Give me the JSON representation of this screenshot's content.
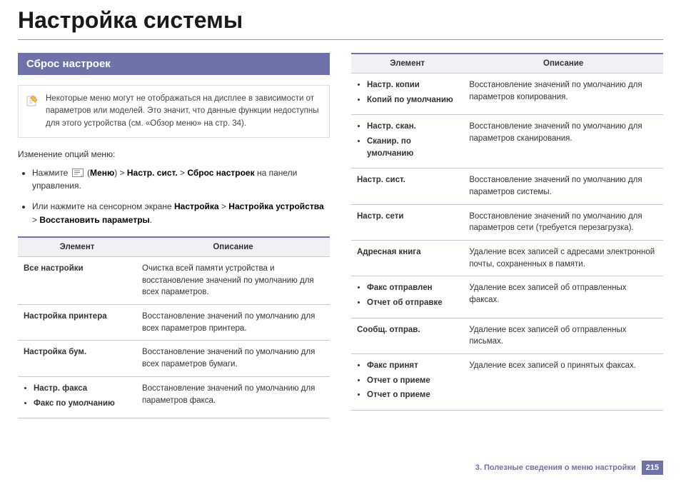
{
  "title": "Настройка системы",
  "section_header": "Сброс настроек",
  "note_text": "Некоторые меню могут не отображаться на дисплее в зависимости от параметров или моделей. Это значит, что данные функции недоступны для этого устройства (см. «Обзор меню» на стр. 34).",
  "intro": "Изменение опций меню:",
  "step1_parts": [
    "Нажмите ",
    " (",
    "Меню",
    ") > ",
    "Настр. сист.",
    " > ",
    "Сброс настроек",
    " на панели управления."
  ],
  "step2_parts": [
    "Или нажмите на сенсорном экране ",
    "Настройка",
    " > ",
    "Настройка устройства",
    " > ",
    "Восстановить параметры",
    "."
  ],
  "table_headers": {
    "element": "Элемент",
    "description": "Описание"
  },
  "left_table": [
    {
      "elements": [
        "Все настройки"
      ],
      "bulleted": false,
      "desc": "Очистка всей памяти устройства и восстановление значений по умолчанию для всех параметров."
    },
    {
      "elements": [
        "Настройка принтера"
      ],
      "bulleted": false,
      "desc": "Восстановление значений по умолчанию для всех параметров принтера."
    },
    {
      "elements": [
        "Настройка бум."
      ],
      "bulleted": false,
      "desc": "Восстановление значений по умолчанию для всех параметров бумаги."
    },
    {
      "elements": [
        "Настр. факса",
        "Факс по умолчанию"
      ],
      "bulleted": true,
      "desc": "Восстановление значений по умолчанию для параметров факса."
    }
  ],
  "right_table": [
    {
      "elements": [
        "Настр. копии",
        "Копий по умолчанию"
      ],
      "bulleted": true,
      "desc": "Восстановление значений по умолчанию для параметров копирования."
    },
    {
      "elements": [
        "Настр. скан.",
        "Сканир. по умолчанию"
      ],
      "bulleted": true,
      "desc": "Восстановление значений по умолчанию для параметров сканирования."
    },
    {
      "elements": [
        "Настр. сист."
      ],
      "bulleted": false,
      "desc": "Восстановление значений по умолчанию для параметров системы."
    },
    {
      "elements": [
        "Настр. сети"
      ],
      "bulleted": false,
      "desc": "Восстановление значений по умолчанию для параметров сети (требуется перезагрузка)."
    },
    {
      "elements": [
        "Адресная книга"
      ],
      "bulleted": false,
      "desc": "Удаление всех записей с адресами электронной почты, сохраненных в памяти."
    },
    {
      "elements": [
        "Факс отправлен",
        "Отчет об отправке"
      ],
      "bulleted": true,
      "desc": "Удаление всех записей об отправленных факсах."
    },
    {
      "elements": [
        "Сообщ. отправ."
      ],
      "bulleted": false,
      "desc": "Удаление всех записей об отправленных письмах."
    },
    {
      "elements": [
        "Факс принят",
        "Отчет о приеме",
        "Отчет о приеме"
      ],
      "bulleted": true,
      "desc": "Удаление всех записей о принятых факсах."
    }
  ],
  "footer_text": "3. Полезные сведения о меню настройки",
  "page_number": "215",
  "colors": {
    "accent": "#6e72a8",
    "header_bg": "#f0f0f5",
    "border": "#c8c8d8",
    "title": "#1a1a1a"
  }
}
